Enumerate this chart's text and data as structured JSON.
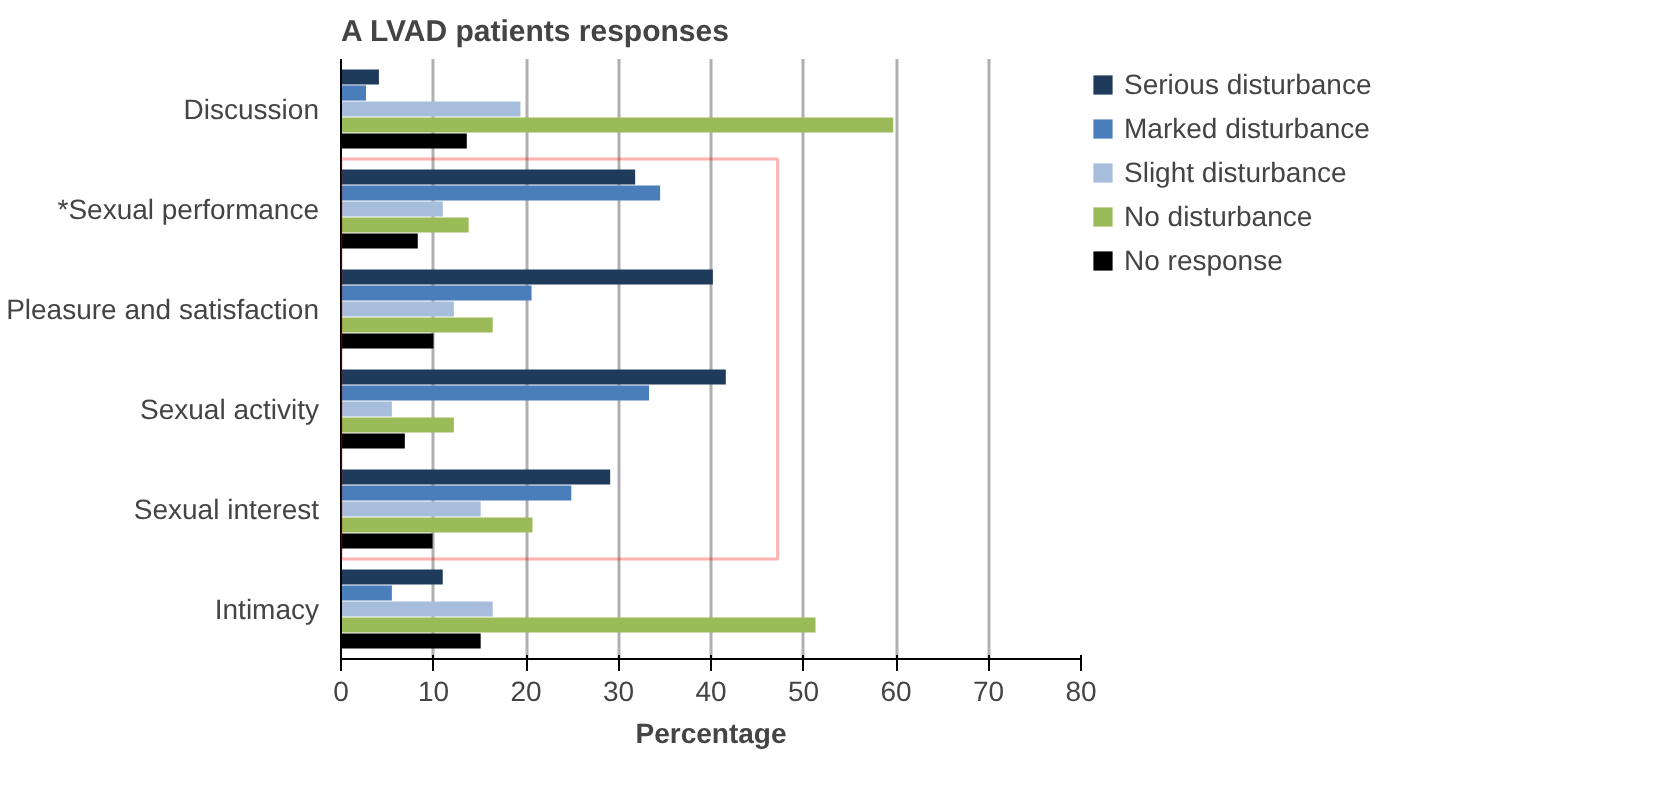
{
  "chart_data": {
    "type": "bar",
    "orientation": "horizontal",
    "title": "A LVAD patients responses",
    "xlabel": "Percentage",
    "categories": [
      "Discussion",
      "*Sexual performance",
      "Pleasure and satisfaction",
      "Sexual activity",
      "Sexual interest",
      "Intimacy"
    ],
    "series": [
      {
        "name": "Serious disturbance",
        "color": "#1f3b5c",
        "values": [
          4.1,
          31.8,
          40.2,
          41.6,
          29.1,
          11
        ]
      },
      {
        "name": "Marked disturbance",
        "color": "#4a7ebb",
        "values": [
          2.7,
          34.5,
          20.6,
          33.3,
          24.9,
          5.5
        ]
      },
      {
        "name": "Slight disturbance",
        "color": "#a6bedc",
        "values": [
          19.4,
          11,
          12.2,
          5.5,
          15.1,
          16.4
        ]
      },
      {
        "name": "No disturbance",
        "color": "#9bbb59",
        "values": [
          59.7,
          13.8,
          16.4,
          12.2,
          20.7,
          51.3
        ]
      },
      {
        "name": "No response",
        "color": "#000000",
        "values": [
          13.6,
          8.3,
          10,
          6.9,
          9.9,
          15.1
        ]
      }
    ],
    "xlim": [
      0,
      80
    ],
    "xticks": [
      0,
      10,
      20,
      30,
      40,
      50,
      60,
      70,
      80
    ],
    "grid": "x",
    "legend": "right"
  }
}
